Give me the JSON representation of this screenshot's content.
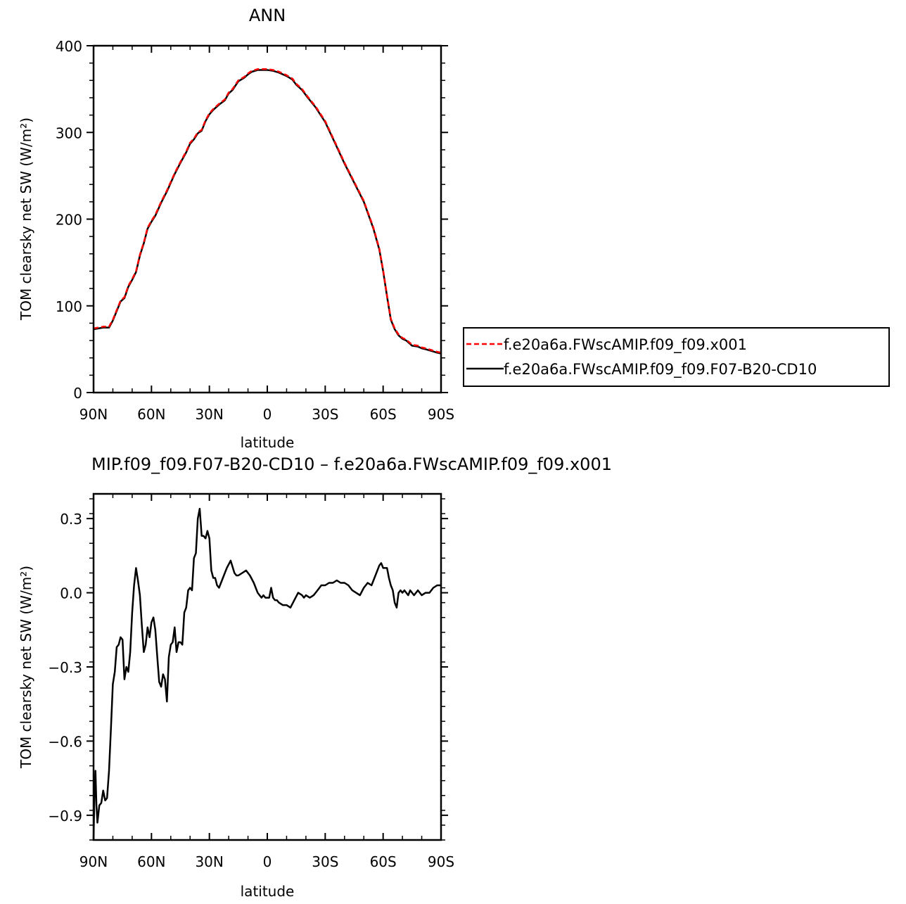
{
  "chart_data": [
    {
      "type": "line",
      "title": "ANN",
      "xlabel": "latitude",
      "ylabel": "TOM clearsky net SW (W/m²)",
      "xlim": [
        90,
        -90
      ],
      "ylim": [
        0,
        400
      ],
      "xticks": [
        {
          "value": 90,
          "label": "90N"
        },
        {
          "value": 60,
          "label": "60N"
        },
        {
          "value": 30,
          "label": "30N"
        },
        {
          "value": 0,
          "label": "0"
        },
        {
          "value": -30,
          "label": "30S"
        },
        {
          "value": -60,
          "label": "60S"
        },
        {
          "value": -90,
          "label": "90S"
        }
      ],
      "yticks": [
        {
          "value": 0,
          "label": "0"
        },
        {
          "value": 100,
          "label": "100"
        },
        {
          "value": 200,
          "label": "200"
        },
        {
          "value": 300,
          "label": "300"
        },
        {
          "value": 400,
          "label": "400"
        }
      ],
      "legend_position": "right",
      "series": [
        {
          "name": "f.e20a6a.FWscAMIP.f09_f09.x001",
          "color": "#ff0000",
          "style": "dashed",
          "x": [
            90,
            85,
            82,
            80,
            78,
            76,
            74,
            72,
            70,
            68,
            66,
            64,
            62,
            60,
            58,
            55,
            52,
            50,
            48,
            45,
            42,
            40,
            38,
            36,
            34,
            32,
            30,
            28,
            25,
            22,
            20,
            18,
            15,
            12,
            10,
            8,
            5,
            2,
            0,
            -3,
            -6,
            -10,
            -13,
            -15,
            -18,
            -21,
            -25,
            -30,
            -35,
            -40,
            -45,
            -50,
            -55,
            -58,
            -60,
            -62,
            -64,
            -66,
            -68,
            -70,
            -72,
            -75,
            -78,
            -80,
            -82,
            -85,
            -88,
            -90
          ],
          "y": [
            74,
            76,
            76,
            84,
            95,
            106,
            110,
            123,
            131,
            140,
            159,
            173,
            190,
            198,
            205,
            220,
            233,
            243,
            253,
            266,
            278,
            288,
            293,
            300,
            303,
            314,
            322,
            327,
            333,
            338,
            346,
            350,
            360,
            364,
            368,
            371,
            373,
            373,
            373,
            372,
            370,
            366,
            362,
            356,
            350,
            341,
            330,
            313,
            289,
            265,
            243,
            221,
            190,
            166,
            141,
            112,
            85,
            74,
            67,
            63,
            61,
            55,
            54,
            52,
            51,
            49,
            47,
            46
          ]
        },
        {
          "name": "f.e20a6a.FWscAMIP.f09_f09.F07-B20-CD10",
          "color": "#000000",
          "style": "solid",
          "x": [
            90,
            85,
            82,
            80,
            78,
            76,
            74,
            72,
            70,
            68,
            66,
            64,
            62,
            60,
            58,
            55,
            52,
            50,
            48,
            45,
            42,
            40,
            38,
            36,
            34,
            32,
            30,
            28,
            25,
            22,
            20,
            18,
            15,
            12,
            10,
            8,
            5,
            2,
            0,
            -3,
            -6,
            -10,
            -13,
            -15,
            -18,
            -21,
            -25,
            -30,
            -35,
            -40,
            -45,
            -50,
            -55,
            -58,
            -60,
            -62,
            -64,
            -66,
            -68,
            -70,
            -72,
            -75,
            -78,
            -80,
            -82,
            -85,
            -88,
            -90
          ],
          "y": [
            73,
            75,
            75,
            83,
            94,
            105,
            109,
            122,
            130,
            139,
            158,
            172,
            189,
            197,
            204,
            219,
            232,
            242,
            252,
            265,
            277,
            287,
            292,
            299,
            302,
            313,
            321,
            326,
            332,
            337,
            345,
            349,
            359,
            363,
            367,
            370,
            372,
            372,
            372,
            371,
            369,
            365,
            361,
            355,
            349,
            340,
            329,
            312,
            288,
            264,
            242,
            220,
            189,
            165,
            140,
            111,
            84,
            73,
            66,
            62,
            60,
            54,
            53,
            51,
            50,
            48,
            46,
            45
          ]
        }
      ]
    },
    {
      "type": "line",
      "title": "MIP.f09_f09.F07-B20-CD10 – f.e20a6a.FWscAMIP.f09_f09.x001",
      "xlabel": "latitude",
      "ylabel": "TOM clearsky net SW (W/m²)",
      "xlim": [
        90,
        -90
      ],
      "ylim": [
        -1.0,
        0.4
      ],
      "xticks": [
        {
          "value": 90,
          "label": "90N"
        },
        {
          "value": 60,
          "label": "60N"
        },
        {
          "value": 30,
          "label": "30N"
        },
        {
          "value": 0,
          "label": "0"
        },
        {
          "value": -30,
          "label": "30S"
        },
        {
          "value": -60,
          "label": "60S"
        },
        {
          "value": -90,
          "label": "90S"
        }
      ],
      "yticks": [
        {
          "value": -0.9,
          "label": "−0.9"
        },
        {
          "value": -0.6,
          "label": "−0.6"
        },
        {
          "value": -0.3,
          "label": "−0.3"
        },
        {
          "value": 0.0,
          "label": "0.0"
        },
        {
          "value": 0.3,
          "label": "0.3"
        }
      ],
      "series": [
        {
          "name": "",
          "color": "#000000",
          "style": "solid",
          "x": [
            90,
            89.5,
            89,
            88.5,
            88,
            87,
            86,
            85,
            84,
            83,
            82,
            81,
            80,
            79,
            78,
            77,
            76,
            75,
            74,
            73,
            72,
            71,
            70,
            69,
            68,
            67,
            66,
            65,
            64,
            63,
            62,
            61,
            60,
            59,
            58,
            57,
            56,
            55,
            54,
            53,
            52,
            51,
            50,
            49,
            48,
            47,
            46,
            45,
            44,
            43,
            42,
            41,
            40,
            39,
            38,
            37,
            36,
            35,
            34,
            33,
            32,
            31,
            30,
            29,
            28,
            27,
            26,
            25,
            23,
            21,
            19,
            17,
            16,
            15,
            13,
            11,
            9,
            7,
            5,
            3,
            2,
            1,
            0,
            -1,
            -2,
            -3,
            -4,
            -5,
            -6,
            -8,
            -10,
            -12,
            -14,
            -16,
            -18,
            -19,
            -20,
            -22,
            -24,
            -26,
            -28,
            -30,
            -32,
            -34,
            -36,
            -38,
            -40,
            -42,
            -44,
            -46,
            -48,
            -50,
            -52,
            -54,
            -56,
            -58,
            -59,
            -60,
            -62,
            -63,
            -64,
            -65,
            -66,
            -67,
            -68,
            -69,
            -70,
            -71,
            -72,
            -73,
            -74,
            -76,
            -78,
            -80,
            -82,
            -84,
            -86,
            -88,
            -90
          ],
          "y": [
            -1.0,
            -0.8,
            -0.72,
            -0.86,
            -0.93,
            -0.86,
            -0.85,
            -0.8,
            -0.84,
            -0.83,
            -0.72,
            -0.55,
            -0.37,
            -0.32,
            -0.22,
            -0.21,
            -0.18,
            -0.19,
            -0.35,
            -0.3,
            -0.32,
            -0.24,
            -0.08,
            0.03,
            0.1,
            0.05,
            -0.01,
            -0.13,
            -0.24,
            -0.21,
            -0.14,
            -0.18,
            -0.12,
            -0.1,
            -0.15,
            -0.26,
            -0.36,
            -0.38,
            -0.33,
            -0.35,
            -0.44,
            -0.26,
            -0.21,
            -0.2,
            -0.14,
            -0.24,
            -0.2,
            -0.2,
            -0.21,
            -0.08,
            -0.06,
            0.01,
            0.02,
            0.01,
            0.14,
            0.16,
            0.3,
            0.34,
            0.23,
            0.23,
            0.22,
            0.25,
            0.22,
            0.09,
            0.06,
            0.06,
            0.03,
            0.02,
            0.06,
            0.1,
            0.13,
            0.08,
            0.07,
            0.07,
            0.08,
            0.09,
            0.07,
            0.04,
            0.0,
            -0.02,
            -0.01,
            -0.02,
            -0.02,
            -0.02,
            0.02,
            -0.02,
            -0.03,
            -0.03,
            -0.04,
            -0.05,
            -0.05,
            -0.06,
            -0.03,
            0.0,
            -0.01,
            -0.02,
            -0.01,
            -0.02,
            -0.01,
            0.01,
            0.03,
            0.03,
            0.04,
            0.04,
            0.05,
            0.04,
            0.04,
            0.03,
            0.01,
            0.0,
            -0.01,
            0.02,
            0.04,
            0.03,
            0.07,
            0.11,
            0.12,
            0.1,
            0.1,
            0.06,
            0.03,
            0.01,
            -0.04,
            -0.06,
            0.0,
            0.01,
            0.0,
            0.01,
            0.0,
            -0.01,
            0.01,
            -0.01,
            0.01,
            -0.01,
            0.0,
            0.0,
            0.02,
            0.03,
            0.03
          ]
        }
      ]
    }
  ]
}
